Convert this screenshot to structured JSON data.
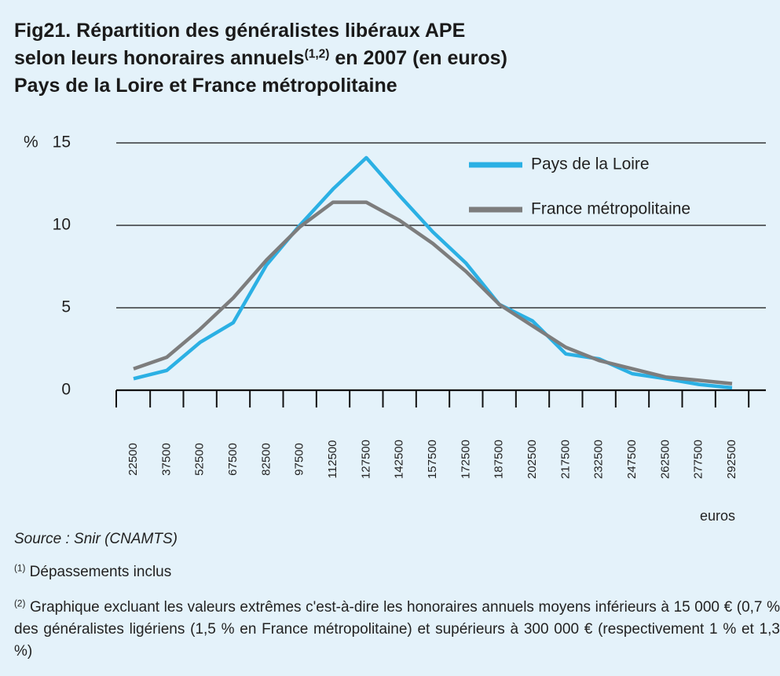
{
  "chart_data": {
    "type": "line",
    "title": [
      "Fig21. Répartition des généralistes libéraux APE",
      "selon leurs honoraires annuels",
      "(1,2)",
      " en 2007 (en euros)",
      "Pays de la Loire et France métropolitaine"
    ],
    "y_label": "%",
    "x_label": "euros",
    "categories": [
      "22500",
      "37500",
      "52500",
      "67500",
      "82500",
      "97500",
      "112500",
      "127500",
      "142500",
      "157500",
      "172500",
      "187500",
      "202500",
      "217500",
      "232500",
      "247500",
      "262500",
      "277500",
      "292500"
    ],
    "series": [
      {
        "name": "Pays de la Loire",
        "color": "#2bb0e4",
        "values": [
          0.7,
          1.2,
          2.9,
          4.1,
          7.6,
          10,
          12.2,
          14.1,
          11.8,
          9.6,
          7.7,
          5.2,
          4.2,
          2.2,
          1.9,
          1.0,
          0.7,
          0.35,
          0.15
        ]
      },
      {
        "name": "France métropolitaine",
        "color": "#7d7d7d",
        "values": [
          1.3,
          2.0,
          3.7,
          5.6,
          7.9,
          9.9,
          11.4,
          11.4,
          10.3,
          8.9,
          7.2,
          5.2,
          3.9,
          2.6,
          1.8,
          1.3,
          0.8,
          0.6,
          0.4
        ]
      }
    ],
    "ylim": [
      0,
      15
    ],
    "yticks": [
      0,
      5,
      10,
      15
    ],
    "grid": true,
    "legend": "upper right",
    "source": "Source : Snir (CNAMTS)",
    "notes": [
      {
        "mark": "(1)",
        "text": " Dépassements inclus"
      },
      {
        "mark": "(2)",
        "text": " Graphique excluant les valeurs extrêmes c'est-à-dire les honoraires annuels moyens inférieurs à 15 000 € (0,7 % des généralistes ligériens (1,5 % en France métropolitaine) et supérieurs à 300 000 € (respectivement 1 % et 1,3 %)"
      }
    ]
  }
}
